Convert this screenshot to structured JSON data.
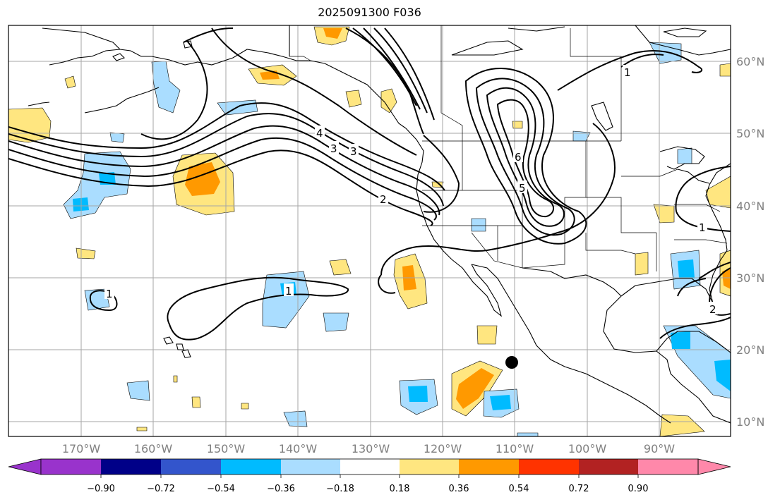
{
  "title": "2025091300 F036",
  "map": {
    "lat_labels": [
      "60°N",
      "50°N",
      "40°N",
      "30°N",
      "20°N",
      "10°N"
    ],
    "lon_labels": [
      "170°W",
      "160°W",
      "150°W",
      "140°W",
      "130°W",
      "120°W",
      "110°W",
      "100°W",
      "90°W"
    ],
    "contour_labels": [
      "4",
      "3",
      "3",
      "2",
      "1",
      "1",
      "1",
      "6",
      "5",
      "2",
      "1"
    ],
    "storm_marker": "filled black circle near 110°W 18°N"
  },
  "colorbar": {
    "ticks": [
      "−0.90",
      "−0.72",
      "−0.54",
      "−0.36",
      "−0.18",
      "0.18",
      "0.36",
      "0.54",
      "0.72",
      "0.90"
    ],
    "colors": [
      "#9933cc",
      "#000088",
      "#3355cc",
      "#00bbff",
      "#aaddff",
      "#ffffff",
      "#ffe680",
      "#ff9900",
      "#ff3300",
      "#b22222",
      "#ff88aa"
    ]
  }
}
